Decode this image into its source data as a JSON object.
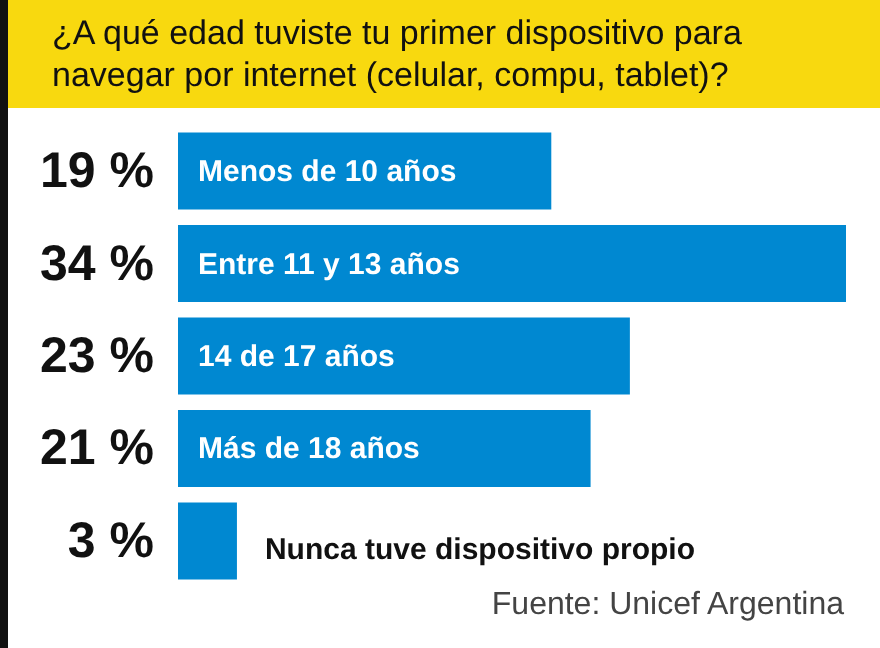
{
  "chart_data": {
    "type": "bar",
    "orientation": "horizontal",
    "title": "¿A qué edad tuviste tu primer dispositivo para navegar por internet (celular, compu, tablet)?",
    "categories": [
      "Menos de 10 años",
      "Entre 11 y 13 años",
      "14 de 17 años",
      "Más de 18 años",
      "Nunca tuve dispositivo propio"
    ],
    "values": [
      19,
      34,
      23,
      21,
      3
    ],
    "value_labels": [
      "19 %",
      "34 %",
      "23 %",
      "21 %",
      "3 %"
    ],
    "color": "#0088d1",
    "annotations": [
      "Fuente: Unicef Argentina"
    ]
  }
}
